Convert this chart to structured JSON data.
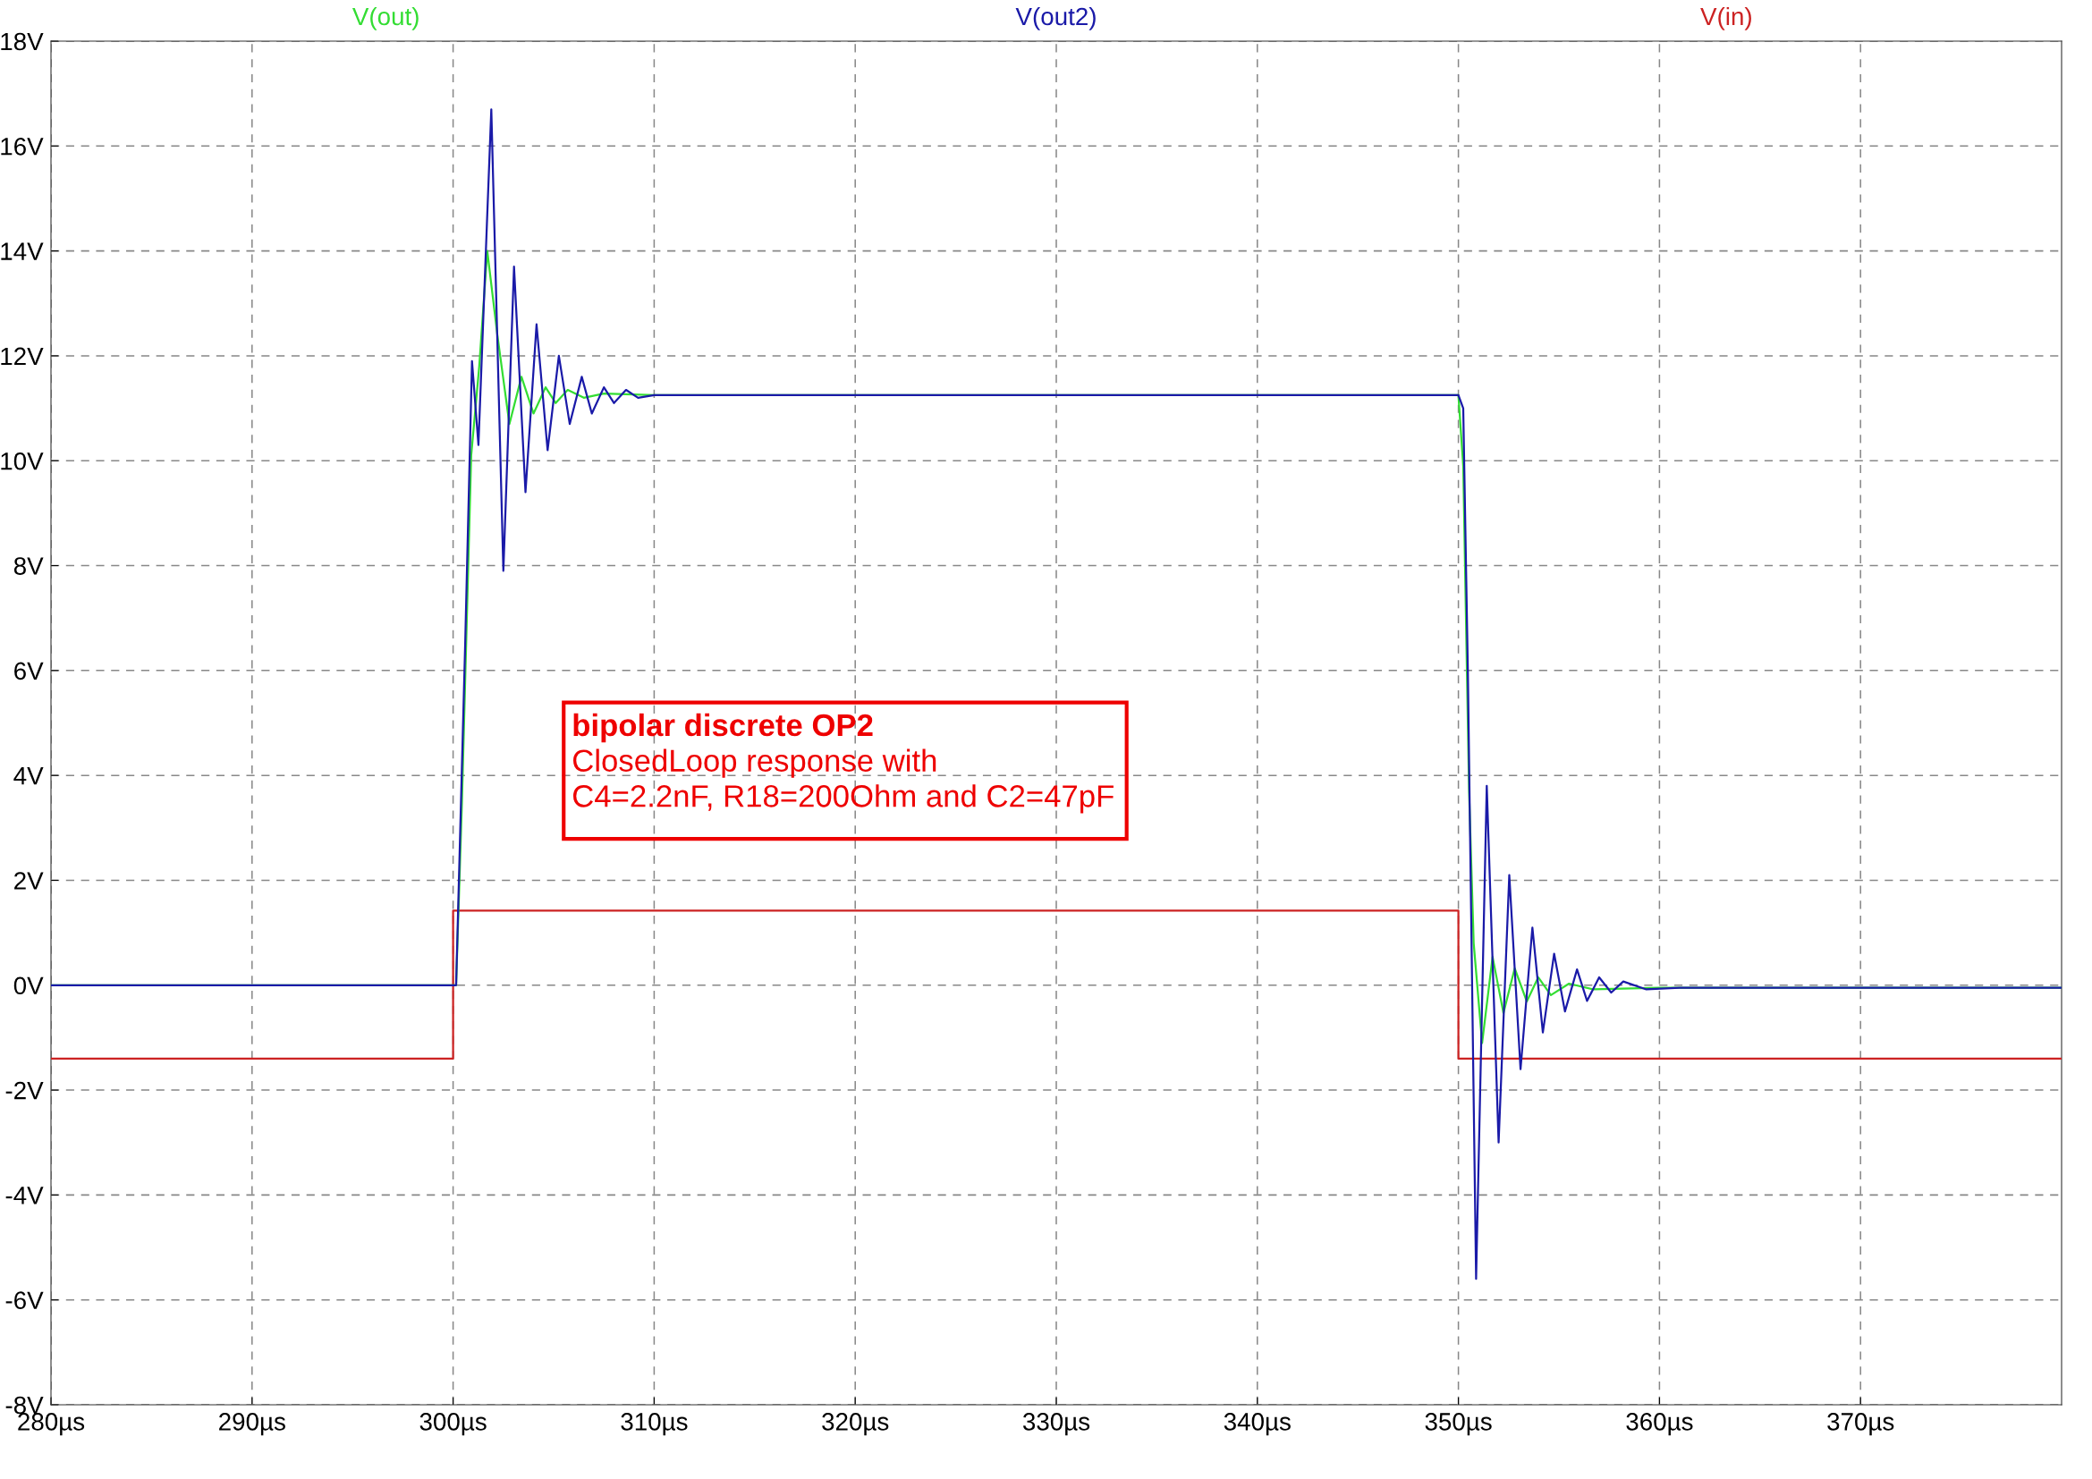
{
  "chart_data": {
    "type": "line",
    "series": [
      {
        "name": "V(out)",
        "color": "#33dd33",
        "x": [
          280,
          300,
          300.15,
          300.44,
          300.9,
          301.3,
          301.7,
          302.2,
          302.8,
          303.4,
          304.0,
          304.6,
          305.1,
          305.7,
          306.5,
          307.5,
          310,
          350,
          350.24,
          350.53,
          350.76,
          351.18,
          351.7,
          352.24,
          352.8,
          353.4,
          353.97,
          354.6,
          355.5,
          356.7,
          360,
          380
        ],
        "values": [
          0,
          0,
          0,
          3.5,
          10.1,
          11.8,
          14.0,
          12.4,
          10.7,
          11.6,
          10.9,
          11.4,
          11.1,
          11.35,
          11.2,
          11.28,
          11.25,
          11.25,
          9.9,
          3.7,
          0.8,
          -1.1,
          0.54,
          -0.53,
          0.32,
          -0.31,
          0.15,
          -0.19,
          0.03,
          -0.08,
          -0.05,
          -0.05
        ]
      },
      {
        "name": "V(out2)",
        "color": "#1a1aa8",
        "x": [
          280,
          300,
          300.15,
          300.6,
          300.94,
          301.26,
          301.9,
          302.5,
          303.03,
          303.6,
          304.15,
          304.7,
          305.26,
          305.8,
          306.4,
          306.9,
          307.5,
          308.0,
          308.6,
          309.2,
          310,
          350,
          350.24,
          350.47,
          350.88,
          351.41,
          352.0,
          352.53,
          353.09,
          353.68,
          354.2,
          354.76,
          355.3,
          355.9,
          356.4,
          357.0,
          357.6,
          358.2,
          359.35,
          361,
          380
        ],
        "values": [
          0,
          0,
          0,
          6.5,
          11.9,
          10.3,
          16.7,
          7.9,
          13.7,
          9.4,
          12.6,
          10.2,
          12.0,
          10.7,
          11.6,
          10.9,
          11.4,
          11.1,
          11.35,
          11.2,
          11.25,
          11.25,
          11.0,
          6.0,
          -5.6,
          3.8,
          -3.0,
          2.1,
          -1.6,
          1.1,
          -0.9,
          0.6,
          -0.5,
          0.3,
          -0.3,
          0.15,
          -0.14,
          0.07,
          -0.08,
          -0.05,
          -0.05
        ]
      },
      {
        "name": "V(in)",
        "color": "#cc2222",
        "x": [
          280,
          300,
          300,
          350,
          350,
          380
        ],
        "values": [
          -1.4,
          -1.4,
          1.42,
          1.42,
          -1.4,
          -1.4
        ]
      }
    ],
    "xlim": [
      280,
      380
    ],
    "xticks": [
      {
        "value": 280,
        "label": "280µs"
      },
      {
        "value": 290,
        "label": "290µs"
      },
      {
        "value": 300,
        "label": "300µs"
      },
      {
        "value": 310,
        "label": "310µs"
      },
      {
        "value": 320,
        "label": "320µs"
      },
      {
        "value": 330,
        "label": "330µs"
      },
      {
        "value": 340,
        "label": "340µs"
      },
      {
        "value": 350,
        "label": "350µs"
      },
      {
        "value": 360,
        "label": "360µs"
      },
      {
        "value": 370,
        "label": "370µs"
      }
    ],
    "ylim": [
      -8,
      18
    ],
    "yticks": [
      {
        "value": -8,
        "label": "-8V"
      },
      {
        "value": -6,
        "label": "-6V"
      },
      {
        "value": -4,
        "label": "-4V"
      },
      {
        "value": -2,
        "label": "-2V"
      },
      {
        "value": 0,
        "label": "0V"
      },
      {
        "value": 2,
        "label": "2V"
      },
      {
        "value": 4,
        "label": "4V"
      },
      {
        "value": 6,
        "label": "6V"
      },
      {
        "value": 8,
        "label": "8V"
      },
      {
        "value": 10,
        "label": "10V"
      },
      {
        "value": 12,
        "label": "12V"
      },
      {
        "value": 14,
        "label": "14V"
      },
      {
        "value": 16,
        "label": "16V"
      },
      {
        "value": 18,
        "label": "18V"
      }
    ],
    "grid": true,
    "line_style": "solid",
    "annotations": [
      "bipolar discrete OP2",
      "ClosedLoop response with",
      "C4=2.2nF, R18=200Ohm and C2=47pF"
    ]
  }
}
